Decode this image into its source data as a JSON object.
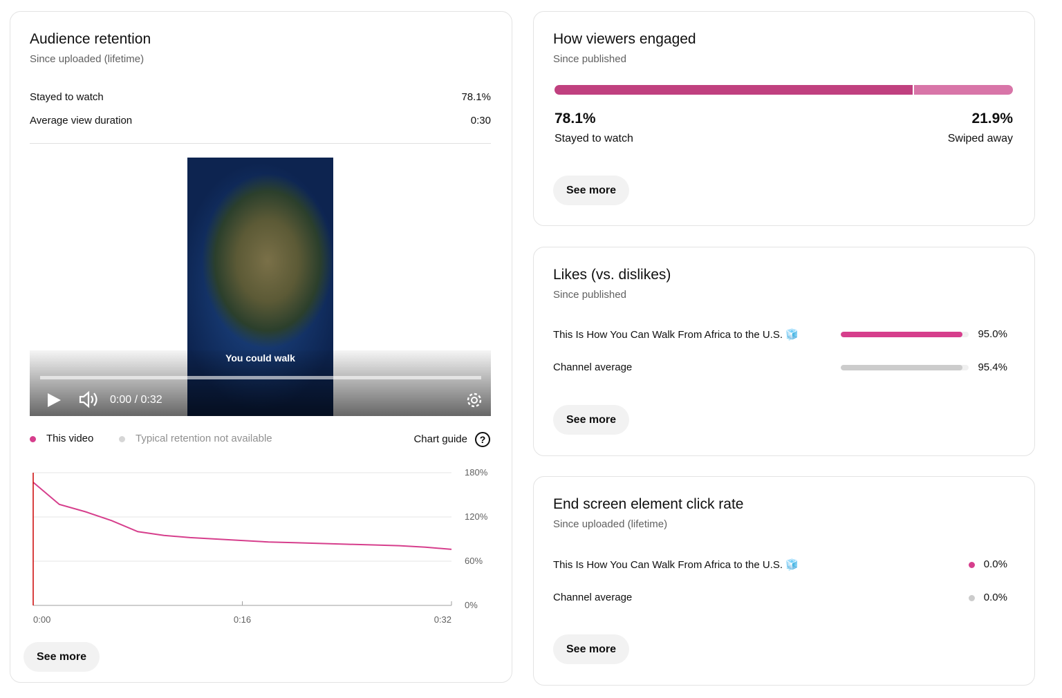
{
  "retention": {
    "title": "Audience retention",
    "subtitle": "Since uploaded (lifetime)",
    "metrics": [
      {
        "label": "Stayed to watch",
        "value": "78.1%"
      },
      {
        "label": "Average view duration",
        "value": "0:30"
      }
    ],
    "video": {
      "caption": "You could walk",
      "time": "0:00 / 0:32"
    },
    "legend": [
      {
        "name": "This video",
        "color": "#d63e8c"
      },
      {
        "name": "Typical retention not available",
        "color": "#d6d6d6"
      }
    ],
    "chart_guide": "Chart guide",
    "chart": {
      "type": "line",
      "x": [
        0,
        2,
        4,
        6,
        8,
        10,
        12,
        14,
        16,
        18,
        20,
        22,
        24,
        26,
        28,
        30,
        32
      ],
      "values": [
        167,
        137,
        127,
        115,
        100,
        95,
        92,
        90,
        88,
        86,
        85,
        84,
        83,
        82,
        81,
        79,
        76
      ],
      "color": "#d63e8c",
      "xlim": [
        0,
        32
      ],
      "xticks": [
        {
          "value": 0,
          "label": "0:00"
        },
        {
          "value": 16,
          "label": "0:16"
        },
        {
          "value": 32,
          "label": "0:32"
        }
      ],
      "ylim": [
        0,
        180
      ],
      "yticks": [
        {
          "value": 0,
          "label": "0%"
        },
        {
          "value": 60,
          "label": "60%"
        },
        {
          "value": 120,
          "label": "120%"
        },
        {
          "value": 180,
          "label": "180%"
        }
      ],
      "grid": true
    },
    "see_more": "See more"
  },
  "engagement": {
    "title": "How viewers engaged",
    "subtitle": "Since published",
    "parts": [
      {
        "name": "Stayed to watch",
        "value": 78.1,
        "label": "78.1%",
        "color": "#c0407f"
      },
      {
        "name": "Swiped away",
        "value": 21.9,
        "label": "21.9%",
        "color": "#d875a8"
      }
    ],
    "see_more": "See more"
  },
  "likes": {
    "title": "Likes (vs. dislikes)",
    "subtitle": "Since published",
    "rows": [
      {
        "name": "This Is How You Can Walk From Africa to the U.S. 🧊",
        "value": 95.0,
        "label": "95.0%",
        "color": "#d63e8c"
      },
      {
        "name": "Channel average",
        "value": 95.4,
        "label": "95.4%",
        "color": "#cccccc"
      }
    ],
    "see_more": "See more"
  },
  "end_screen": {
    "title": "End screen element click rate",
    "subtitle": "Since uploaded (lifetime)",
    "rows": [
      {
        "name": "This Is How You Can Walk From Africa to the U.S. 🧊",
        "label": "0.0%",
        "color": "#d63e8c"
      },
      {
        "name": "Channel average",
        "label": "0.0%",
        "color": "#cccccc"
      }
    ],
    "see_more": "See more"
  }
}
